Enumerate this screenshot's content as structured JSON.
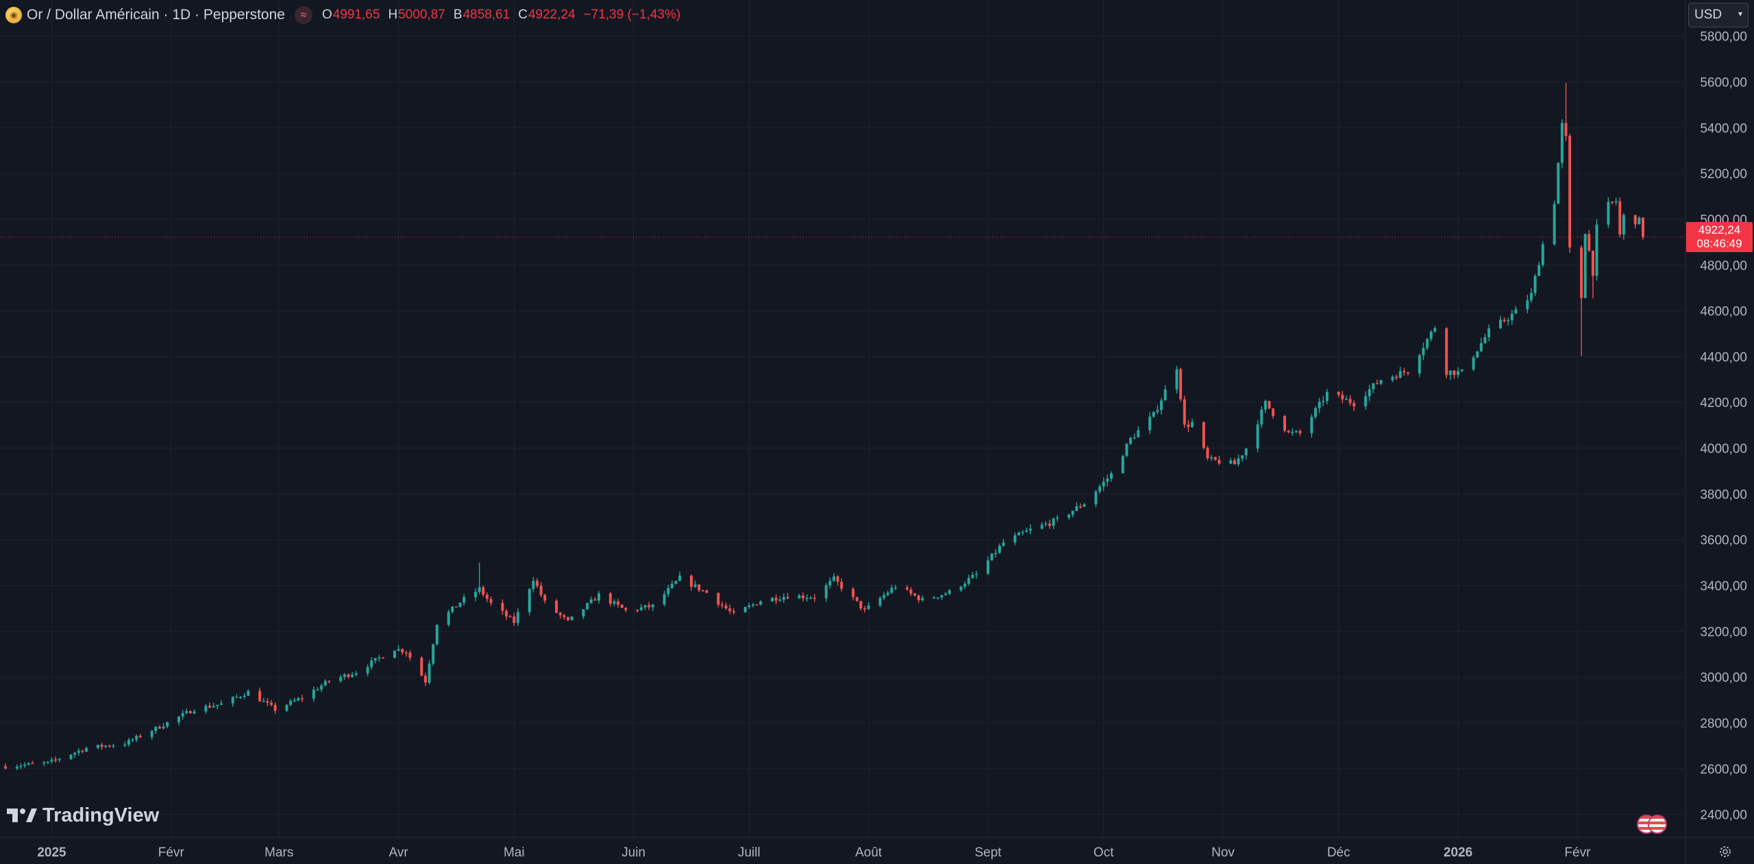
{
  "legend": {
    "title": "Or / Dollar Américain · 1D · Pepperstone",
    "o_label": "O",
    "o_value": "4991,65",
    "h_label": "H",
    "h_value": "5000,87",
    "l_label": "B",
    "l_value": "4858,61",
    "c_label": "C",
    "c_value": "4922,24",
    "change": "−71,39 (−1,43%)"
  },
  "currency": {
    "value": "USD"
  },
  "branding": {
    "name": "TradingView"
  },
  "price_badge": {
    "price": "4922,24",
    "countdown": "08:46:49"
  },
  "icons": {
    "symbol": "gold-coin-icon",
    "wave": "wave-icon",
    "chevron": "chevron-down-icon",
    "settings": "gear-icon",
    "flags": "flag-icon"
  },
  "colors": {
    "background": "#131722",
    "up": "#26a69a",
    "down": "#ef5350",
    "grid": "#1f2330",
    "text": "#d1d4dc",
    "badge": "#f23645"
  },
  "chart_data": {
    "type": "candlestick",
    "ylim": [
      2300,
      5850
    ],
    "y_ticks": [
      "2400,00",
      "2600,00",
      "2800,00",
      "3000,00",
      "3200,00",
      "3400,00",
      "3600,00",
      "3800,00",
      "4000,00",
      "4200,00",
      "4400,00",
      "4600,00",
      "4800,00",
      "5000,00",
      "5200,00",
      "5400,00",
      "5600,00",
      "5800,00"
    ],
    "x_ticks": [
      {
        "label": "2025",
        "bold": true,
        "date": "2025-01-01"
      },
      {
        "label": "Févr",
        "date": "2025-02-01"
      },
      {
        "label": "Mars",
        "date": "2025-03-01"
      },
      {
        "label": "Avr",
        "date": "2025-04-01"
      },
      {
        "label": "Mai",
        "date": "2025-05-01"
      },
      {
        "label": "Juin",
        "date": "2025-06-01"
      },
      {
        "label": "Juill",
        "date": "2025-07-01"
      },
      {
        "label": "Août",
        "date": "2025-08-01"
      },
      {
        "label": "Sept",
        "date": "2025-09-01"
      },
      {
        "label": "Oct",
        "date": "2025-10-01"
      },
      {
        "label": "Nov",
        "date": "2025-11-01"
      },
      {
        "label": "Déc",
        "date": "2025-12-01"
      },
      {
        "label": "2026",
        "bold": true,
        "date": "2026-01-01"
      },
      {
        "label": "Févr",
        "date": "2026-02-01"
      }
    ],
    "last_price": 4922.24,
    "close_anchors": [
      [
        "2024-12-20",
        2610
      ],
      [
        "2024-12-31",
        2625
      ],
      [
        "2025-01-10",
        2690
      ],
      [
        "2025-01-20",
        2710
      ],
      [
        "2025-01-31",
        2800
      ],
      [
        "2025-02-07",
        2860
      ],
      [
        "2025-02-14",
        2882
      ],
      [
        "2025-02-21",
        2935
      ],
      [
        "2025-02-28",
        2858
      ],
      [
        "2025-03-07",
        2910
      ],
      [
        "2025-03-14",
        2984
      ],
      [
        "2025-03-21",
        3022
      ],
      [
        "2025-03-31",
        3124
      ],
      [
        "2025-04-03",
        3112
      ],
      [
        "2025-04-08",
        2982
      ],
      [
        "2025-04-11",
        3236
      ],
      [
        "2025-04-17",
        3327
      ],
      [
        "2025-04-22",
        3385
      ],
      [
        "2025-04-25",
        3320
      ],
      [
        "2025-05-01",
        3240
      ],
      [
        "2025-05-06",
        3430
      ],
      [
        "2025-05-09",
        3325
      ],
      [
        "2025-05-15",
        3240
      ],
      [
        "2025-05-23",
        3358
      ],
      [
        "2025-05-30",
        3290
      ],
      [
        "2025-06-06",
        3310
      ],
      [
        "2025-06-13",
        3432
      ],
      [
        "2025-06-20",
        3368
      ],
      [
        "2025-06-27",
        3272
      ],
      [
        "2025-07-04",
        3334
      ],
      [
        "2025-07-11",
        3355
      ],
      [
        "2025-07-18",
        3350
      ],
      [
        "2025-07-23",
        3428
      ],
      [
        "2025-07-31",
        3290
      ],
      [
        "2025-08-08",
        3398
      ],
      [
        "2025-08-15",
        3336
      ],
      [
        "2025-08-22",
        3371
      ],
      [
        "2025-08-29",
        3448
      ],
      [
        "2025-09-05",
        3587
      ],
      [
        "2025-09-12",
        3643
      ],
      [
        "2025-09-19",
        3685
      ],
      [
        "2025-09-26",
        3760
      ],
      [
        "2025-10-03",
        3886
      ],
      [
        "2025-10-08",
        4040
      ],
      [
        "2025-10-14",
        4145
      ],
      [
        "2025-10-17",
        4250
      ],
      [
        "2025-10-20",
        4357
      ],
      [
        "2025-10-22",
        4095
      ],
      [
        "2025-10-24",
        4110
      ],
      [
        "2025-10-28",
        3950
      ],
      [
        "2025-11-04",
        3930
      ],
      [
        "2025-11-07",
        4000
      ],
      [
        "2025-11-12",
        4196
      ],
      [
        "2025-11-18",
        4065
      ],
      [
        "2025-11-21",
        4064
      ],
      [
        "2025-11-28",
        4239
      ],
      [
        "2025-12-05",
        4197
      ],
      [
        "2025-12-12",
        4300
      ],
      [
        "2025-12-19",
        4338
      ],
      [
        "2025-12-26",
        4530
      ],
      [
        "2025-12-29",
        4335
      ],
      [
        "2026-01-02",
        4330
      ],
      [
        "2026-01-09",
        4510
      ],
      [
        "2026-01-16",
        4595
      ],
      [
        "2026-01-20",
        4670
      ],
      [
        "2026-01-23",
        4890
      ],
      [
        "2026-01-26",
        5080
      ],
      [
        "2026-01-28",
        5410
      ],
      [
        "2026-01-29",
        5350
      ],
      [
        "2026-01-30",
        4865
      ],
      [
        "2026-02-02",
        4660
      ],
      [
        "2026-02-03",
        4950
      ],
      [
        "2026-02-05",
        4770
      ],
      [
        "2026-02-06",
        4960
      ],
      [
        "2026-02-09",
        5060
      ],
      [
        "2026-02-11",
        5080
      ],
      [
        "2026-02-12",
        4930
      ],
      [
        "2026-02-13",
        5010
      ],
      [
        "2026-02-17",
        4990
      ],
      [
        "2026-02-18",
        4922
      ]
    ]
  }
}
